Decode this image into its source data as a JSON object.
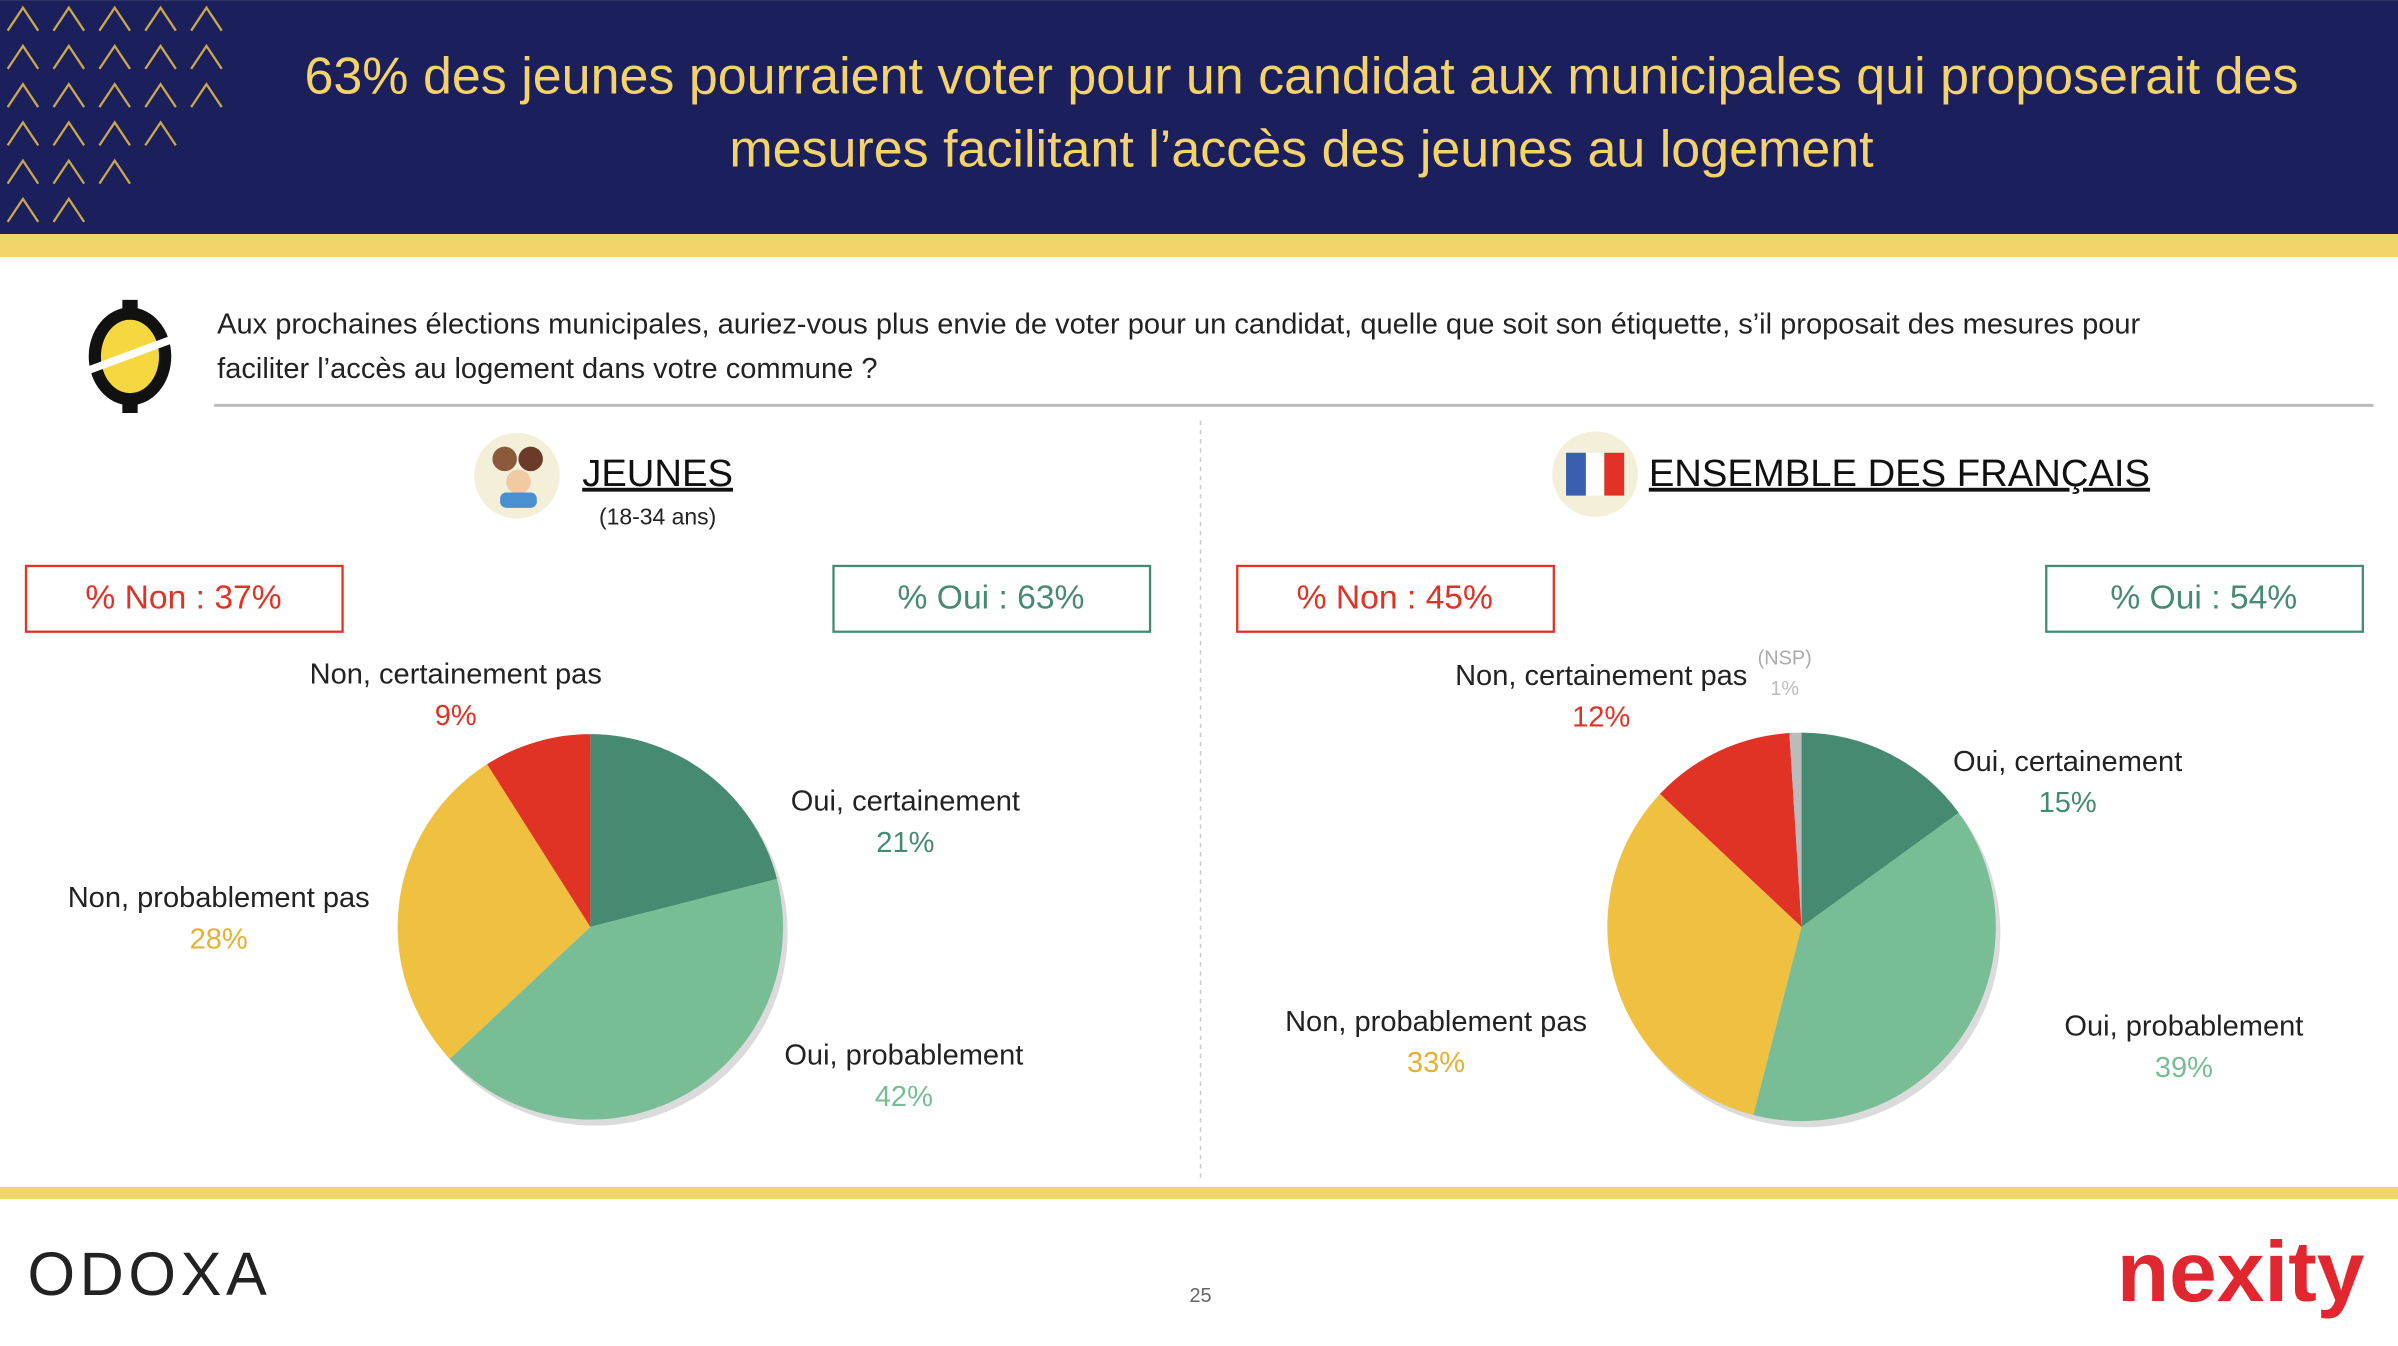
{
  "header": {
    "title_line1": "63% des jeunes pourraient voter pour un candidat aux municipales qui proposerait des",
    "title_line2": "mesures facilitant l’accès des jeunes au logement"
  },
  "question": {
    "line1": "Aux prochaines élections municipales, auriez-vous plus envie de voter pour un candidat, quelle que soit son étiquette, s’il proposait des mesures pour",
    "line2": "faciliter l’accès au logement dans votre commune ?"
  },
  "chart_data": [
    {
      "type": "pie",
      "title": "JEUNES",
      "subtitle": "(18-34 ans)",
      "summary_no": "% Non : 37%",
      "summary_yes": "% Oui : 63%",
      "categories": [
        "Oui, certainement",
        "Oui, probablement",
        "Non, probablement pas",
        "Non, certainement pas"
      ],
      "values": [
        21,
        42,
        28,
        9
      ],
      "value_labels": [
        "21%",
        "42%",
        "28%",
        "9%"
      ],
      "colors": [
        "#468a72",
        "#79bd96",
        "#f0c040",
        "#e03325"
      ]
    },
    {
      "type": "pie",
      "title": "ENSEMBLE DES FRANÇAIS",
      "summary_no": "% Non : 45%",
      "summary_yes": "% Oui : 54%",
      "categories": [
        "Oui, certainement",
        "Oui, probablement",
        "Non, probablement pas",
        "Non, certainement pas",
        "(NSP)"
      ],
      "values": [
        15,
        39,
        33,
        12,
        1
      ],
      "value_labels": [
        "15%",
        "39%",
        "33%",
        "12%",
        "1%"
      ],
      "colors": [
        "#468a72",
        "#79bd96",
        "#f0c040",
        "#e03325",
        "#bbbbbb"
      ]
    }
  ],
  "footer": {
    "left_logo": "ODOXA",
    "page_number": "25",
    "right_logo": "nexity"
  }
}
